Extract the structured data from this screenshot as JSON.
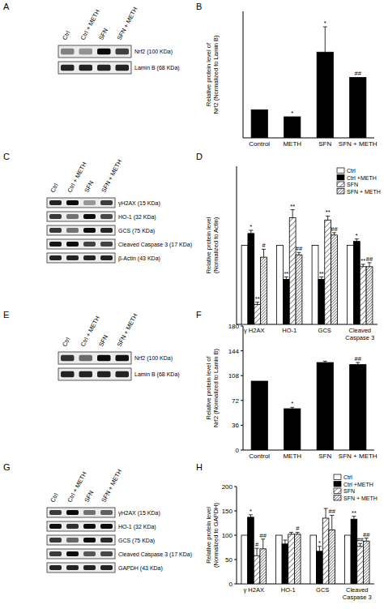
{
  "blots": [
    {
      "title": "A",
      "lanes": [
        "Ctrl",
        "Ctrl + METH",
        "SFN",
        "SFN + METH"
      ],
      "rows": [
        "Nrf2 (100 KDa)",
        "Lamin B (68 KDa)"
      ]
    },
    {
      "title": "C",
      "lanes": [
        "Ctrl",
        "Ctrl + METH",
        "SFN",
        "SFN + METH"
      ],
      "rows": [
        "γH2AX (15 KDa)",
        "HO-1 (32 KDa)",
        "GCS (75 KDa)",
        "Cleaved Caspase 3 (17 KDa)",
        "β-Actin (43 KDa)"
      ]
    },
    {
      "title": "E",
      "lanes": [
        "Ctrl",
        "Ctrl + METH",
        "SFN",
        "SFN + METH"
      ],
      "rows": [
        "Nrf2 (100 KDa)",
        "Lamin B (68 KDa)"
      ]
    },
    {
      "title": "G",
      "lanes": [
        "Ctrl",
        "Ctrl + METH",
        "SFN",
        "SFN + METH"
      ],
      "rows": [
        "γH2AX (15 KDa)",
        "HO-1 (32 KDa)",
        "GCS (75 KDa)",
        "Cleaved Caspase 3 (17 KDa)",
        "GAPDH (43 KDa)"
      ]
    }
  ],
  "chart_data": [
    {
      "title": "B",
      "type": "bar",
      "categories": [
        "Control",
        "METH",
        "SFN",
        "SFN + METH"
      ],
      "values": [
        100,
        75,
        305,
        215
      ],
      "errors": [
        0,
        0,
        90,
        0
      ],
      "annotations": [
        null,
        "*",
        "*",
        "##"
      ],
      "color": "#000000",
      "y_label": [
        "Relative protein level of",
        "Nrf2 (Normalized to Lamin B)"
      ],
      "ylim": [
        0,
        450
      ],
      "tick_labels": "x"
    },
    {
      "title": "D",
      "type": "bar",
      "categories": [
        "γ H2AX",
        "HO-1",
        "GCS",
        "Cleaved Caspase 3"
      ],
      "series": [
        {
          "name": "Ctrl",
          "color": "#ffffff",
          "values": [
            100,
            100,
            100,
            100
          ],
          "errors": [
            0,
            0,
            0,
            0
          ],
          "annotations": [
            null,
            null,
            null,
            null
          ]
        },
        {
          "name": "Ctrl +METH",
          "color": "#000000",
          "values": [
            115,
            57,
            57,
            105
          ],
          "errors": [
            4,
            3,
            3,
            3
          ],
          "annotations": [
            "*",
            "**",
            "**",
            "*"
          ]
        },
        {
          "name": "SFN",
          "color": "#ffffff",
          "values": [
            25,
            135,
            132,
            73
          ],
          "errors": [
            3,
            10,
            5,
            3
          ],
          "annotations": [
            "**",
            "**",
            "**",
            "**"
          ]
        },
        {
          "name": "SFN + METH",
          "color": "#ffffff",
          "values": [
            85,
            88,
            113,
            73
          ],
          "errors": [
            10,
            3,
            3,
            5
          ],
          "annotations": [
            "#",
            "##",
            "##",
            "##"
          ]
        }
      ],
      "y_label": [
        "Relative protein level",
        "(Normalized to Actin)"
      ],
      "ylim": [
        0,
        200
      ],
      "tick_labels": "x",
      "legend": "top-right"
    },
    {
      "title": "F",
      "type": "bar",
      "categories": [
        "Control",
        "METH",
        "SFN",
        "SFN + METH"
      ],
      "values": [
        100,
        60,
        127,
        124
      ],
      "errors": [
        0,
        2,
        2,
        3
      ],
      "annotations": [
        null,
        "*",
        null,
        "##"
      ],
      "color": "#000000",
      "y_label": [
        "Relative protein level of",
        "Nrf2 (Normalized to Lamin B)"
      ],
      "ylim": [
        0,
        180
      ],
      "yticks": [
        0,
        36,
        72,
        108,
        144,
        180
      ]
    },
    {
      "title": "H",
      "type": "bar",
      "categories": [
        "γ H2AX",
        "HO-1",
        "GCS",
        "Cleaved Caspase 3"
      ],
      "series": [
        {
          "name": "Ctrl",
          "color": "#ffffff",
          "values": [
            100,
            100,
            100,
            100
          ],
          "errors": [
            0,
            0,
            0,
            0
          ],
          "annotations": [
            null,
            null,
            null,
            null
          ]
        },
        {
          "name": "Ctrl +METH",
          "color": "#000000",
          "values": [
            137,
            82,
            67,
            133
          ],
          "errors": [
            5,
            8,
            10,
            6
          ],
          "annotations": [
            "*",
            null,
            "*",
            "**"
          ]
        },
        {
          "name": "SFN",
          "color": "#ffffff",
          "values": [
            58,
            102,
            135,
            77
          ],
          "errors": [
            15,
            4,
            20,
            6
          ],
          "annotations": [
            "#",
            null,
            null,
            "##"
          ]
        },
        {
          "name": "SFN + METH",
          "color": "#ffffff",
          "values": [
            72,
            102,
            111,
            88
          ],
          "errors": [
            20,
            4,
            30,
            6
          ],
          "annotations": [
            "##",
            "#",
            "##",
            "##"
          ]
        }
      ],
      "y_label": [
        "Relative protein level",
        "(Normalized to GAPDH)"
      ],
      "ylim": [
        0,
        200
      ],
      "yticks": [
        0,
        50,
        100,
        150,
        200
      ],
      "legend": "top-right"
    }
  ]
}
